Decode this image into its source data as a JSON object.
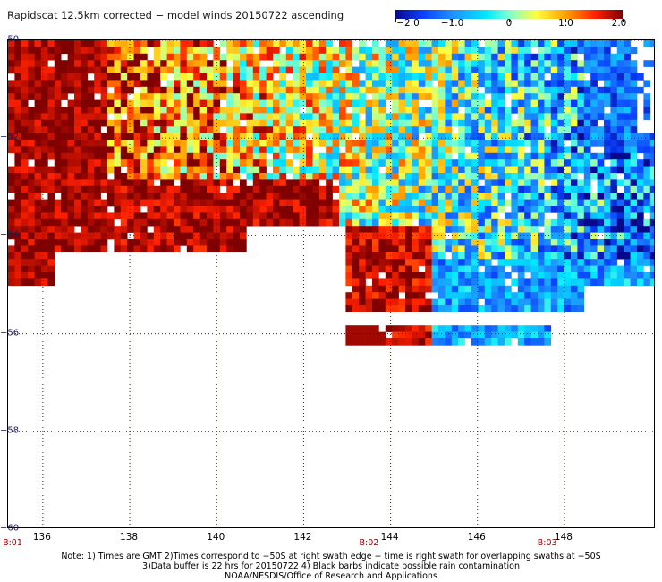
{
  "title": "Rapidscat 12.5km corrected − model winds 20150722 ascending",
  "colorbar": {
    "labels": [
      "−2.0",
      "−1.0",
      "0",
      "1.0",
      "2.0"
    ],
    "values": [
      -2.0,
      -1.0,
      0,
      1.0,
      2.0
    ]
  },
  "map": {
    "lat_labels": [
      "−50",
      "−52",
      "−54",
      "−56",
      "−58",
      "−60"
    ],
    "lat_values": [
      -50,
      -52,
      -54,
      -56,
      -58,
      -60
    ],
    "lon_labels": [
      "136",
      "138",
      "140",
      "142",
      "144",
      "146",
      "148"
    ],
    "lon_values": [
      136,
      138,
      140,
      142,
      144,
      146,
      148
    ],
    "lon_range": [
      135.2,
      150.1
    ],
    "lat_range": [
      -50,
      -60
    ],
    "time_markers": [
      {
        "label": "B:01",
        "lon": 135.2
      },
      {
        "label": "B:02",
        "lon": 143.4
      },
      {
        "label": "B:03",
        "lon": 147.5
      }
    ]
  },
  "notes": [
    "Note: 1) Times are GMT 2)Times correspond to −50S at right swath edge − time is right swath for overlapping swaths at −50S",
    "3)Data buffer is 22 hrs for 20150722 4) Black barbs indicate possible rain contamination",
    "NOAA/NESDIS/Office of Research and Applications"
  ]
}
